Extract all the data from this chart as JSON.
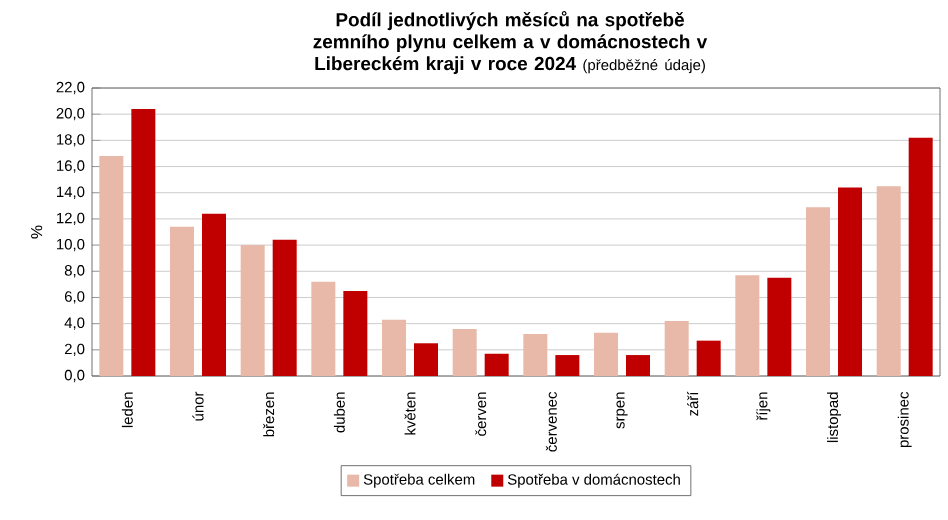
{
  "chart_data": {
    "type": "bar",
    "title": "Podíl jednotlivých měsíců na spotřebě zemního plynu celkem a v domácnostech v Libereckém kraji v roce 2024",
    "subtitle": "(předběžné údaje)",
    "ylabel": "%",
    "categories": [
      "leden",
      "únor",
      "březen",
      "duben",
      "květen",
      "červen",
      "červenec",
      "srpen",
      "září",
      "říjen",
      "listopad",
      "prosinec"
    ],
    "series": [
      {
        "name": "Spotřeba celkem",
        "color": "#e8b8a8",
        "values": [
          16.8,
          11.4,
          10.0,
          7.2,
          4.3,
          3.6,
          3.2,
          3.3,
          4.2,
          7.7,
          12.9,
          14.5
        ]
      },
      {
        "name": "Spotřeba v domácnostech",
        "color": "#c00000",
        "values": [
          20.4,
          12.4,
          10.4,
          6.5,
          2.5,
          1.7,
          1.6,
          1.6,
          2.7,
          7.5,
          14.4,
          18.2
        ]
      }
    ],
    "ylim": [
      0,
      22
    ],
    "yticks": [
      {
        "value": 0,
        "label": "0,0"
      },
      {
        "value": 2,
        "label": "2,0"
      },
      {
        "value": 4,
        "label": "4,0"
      },
      {
        "value": 6,
        "label": "6,0"
      },
      {
        "value": 8,
        "label": "8,0"
      },
      {
        "value": 10,
        "label": "10,0"
      },
      {
        "value": 12,
        "label": "12,0"
      },
      {
        "value": 14,
        "label": "14,0"
      },
      {
        "value": 16,
        "label": "16,0"
      },
      {
        "value": 18,
        "label": "18,0"
      },
      {
        "value": 20,
        "label": "20,0"
      },
      {
        "value": 22,
        "label": "22,0"
      }
    ],
    "grid": "y",
    "legend": "bottom"
  }
}
